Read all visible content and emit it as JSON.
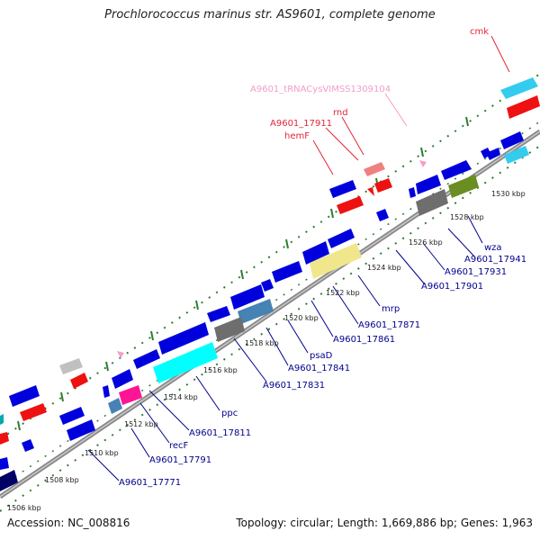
{
  "title": "Prochlorococcus marinus str. AS9601, complete genome",
  "footer": {
    "accession": "Accession: NC_008816",
    "summary": "Topology: circular; Length: 1,669,886 bp; Genes: 1,963"
  },
  "colors": {
    "backbone": "#999999",
    "tick": "#2e7d32",
    "rrna_label": "#e32636",
    "trna_label": "#f29ec8",
    "gene_label": "#00008b"
  },
  "ruler": [
    "1506 kbp",
    "1508 kbp",
    "1510 kbp",
    "1512 kbp",
    "1514 kbp",
    "1516 kbp",
    "1518 kbp",
    "1520 kbp",
    "1522 kbp",
    "1524 kbp",
    "1526 kbp",
    "1528 kbp",
    "1530 kbp"
  ],
  "labels_top": [
    "cmk",
    "A9601_tRNACysVIMSS1309104",
    "A9601_17911",
    "rnd",
    "hemF"
  ],
  "labels_bottom": [
    "wza",
    "A9601_17941",
    "A9601_17931",
    "A9601_17901",
    "mrp",
    "A9601_17871",
    "A9601_17861",
    "psaD",
    "A9601_17841",
    "A9601_17831",
    "ppc",
    "A9601_17811",
    "recF",
    "A9601_17791",
    "A9601_17771"
  ]
}
